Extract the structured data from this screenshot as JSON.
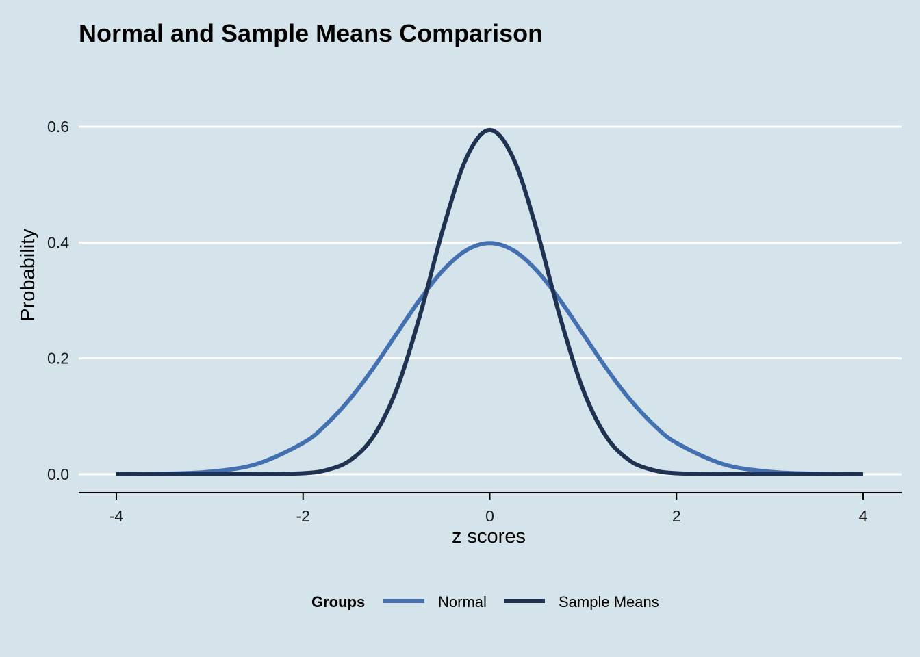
{
  "chart_data": {
    "type": "line",
    "title": "Normal and Sample Means Comparison",
    "xlabel": "z scores",
    "ylabel": "Probability",
    "xlim": [
      -4,
      4
    ],
    "ylim": [
      0,
      0.69
    ],
    "x_ticks": [
      "-4",
      "-2",
      "0",
      "2",
      "4"
    ],
    "y_ticks": [
      "0.0",
      "0.2",
      "0.4",
      "0.6"
    ],
    "grid": "horizontal",
    "legend": {
      "title": "Groups",
      "position": "bottom"
    },
    "x": [
      -4,
      -3.5,
      -3,
      -2.5,
      -2,
      -1.75,
      -1.5,
      -1.25,
      -1,
      -0.75,
      -0.5,
      -0.25,
      0,
      0.25,
      0.5,
      0.75,
      1,
      1.25,
      1.5,
      1.75,
      2,
      2.5,
      3,
      3.5,
      4
    ],
    "series": [
      {
        "name": "Normal",
        "color": "#4370b0",
        "values": [
          0.0001,
          0.0009,
          0.0044,
          0.0175,
          0.054,
          0.0863,
          0.1295,
          0.1826,
          0.242,
          0.3011,
          0.3521,
          0.3867,
          0.3989,
          0.3867,
          0.3521,
          0.3011,
          0.242,
          0.1826,
          0.1295,
          0.0863,
          0.054,
          0.0175,
          0.0044,
          0.0009,
          0.0001
        ]
      },
      {
        "name": "Sample Means",
        "color": "#1f3251",
        "values": [
          0,
          0,
          0,
          0.0001,
          0.0018,
          0.0072,
          0.0236,
          0.0645,
          0.1457,
          0.273,
          0.4235,
          0.5461,
          0.5942,
          0.5461,
          0.4235,
          0.273,
          0.1457,
          0.0645,
          0.0236,
          0.0072,
          0.0018,
          0.0001,
          0,
          0,
          0
        ]
      }
    ]
  }
}
